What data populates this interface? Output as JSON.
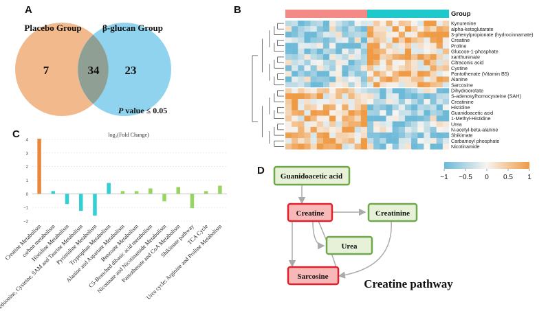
{
  "panels": {
    "a": "A",
    "b": "B",
    "c": "C",
    "d": "D"
  },
  "venn": {
    "left_label": "Placebo Group",
    "right_label": "β-glucan Group",
    "left_only": "7",
    "overlap": "34",
    "right_only": "23",
    "pvalue_p": "P",
    "pvalue_rest": " value ≤ 0.05",
    "colors": {
      "left": "#f2b98c",
      "right": "#8fd3ef",
      "overlap": "#8f9f93"
    }
  },
  "heatmap": {
    "group_label": "Group",
    "group_colors": [
      "#f48a86",
      "#1ec9cc"
    ],
    "metabolites": [
      "Kynurenine",
      "alpha-ketoglutarate",
      "3-phenylpropionate (hydrocinnamate)",
      "Creatine",
      "Proline",
      "Glucose-1-phosphate",
      "xanthurenate",
      "Citraconic acid",
      "Cystine",
      "Pantothenate (Vitamin B5)",
      "Alanine",
      "Sarcosine",
      "Dihydroorotate",
      "S-adenosylhomocysteine (SAH)",
      "Creatinine",
      "Histidine",
      "Guanidoacetic acid",
      "1-Methyl-Histidine",
      "Urea",
      "N-acetyl-beta-alanine",
      "Shikimate",
      "Carbamoyl phosphate",
      "Nicotinamide"
    ],
    "legend_ticks": [
      "−1",
      "−0.5",
      "0",
      "0.5",
      "1"
    ],
    "scale_colors": {
      "low": "#6db9d8",
      "mid": "#f7f4f0",
      "high": "#ef9a44"
    }
  },
  "chart_data": {
    "type": "bar",
    "title": "log₂(Fold Change)",
    "categories": [
      "Creatine Metabolism",
      "carbon metabolism",
      "Histidine Metabolism",
      "Methionine, Cysteine, SAM and Taurine Metabolism",
      "Pyrimidine Metabolism",
      "Tryptophan Metabolism",
      "Alanine and Aspartate Metabolism",
      "Benzoate Metabolism",
      "C5-Branched dibasic acid metabolism",
      "Nicotinate and Nicotinamide Metabolism",
      "Pantothenate and CoA Metabolism",
      "Shikimate pathway",
      "TCA Cycle",
      "Urea cycle; Arginine and Proline Metabolism"
    ],
    "values": [
      4.05,
      0.2,
      -0.75,
      -1.25,
      -1.6,
      0.8,
      0.2,
      0.2,
      0.4,
      -0.55,
      0.5,
      -1.05,
      0.2,
      0.6
    ],
    "bar_colors": [
      "#e8883f",
      "#32d0d2",
      "#32d0d2",
      "#32d0d2",
      "#32d0d2",
      "#32d0d2",
      "#98d461",
      "#98d461",
      "#98d461",
      "#98d461",
      "#98d461",
      "#98d461",
      "#98d461",
      "#98d461"
    ],
    "yticks": [
      "4",
      "3",
      "2",
      "1",
      "0",
      "−1",
      "−2"
    ],
    "ylim": [
      -2,
      4
    ],
    "grid": true
  },
  "pathway": {
    "title": "Creatine pathway",
    "nodes": {
      "guanidoacetic": "Guanidoacetic acid",
      "creatine": "Creatine",
      "creatinine": "Creatinine",
      "urea": "Urea",
      "sarcosine": "Sarcosine"
    },
    "colors": {
      "green_fill": "#e6f1d8",
      "green_border": "#6fa84a",
      "red_fill": "#f8b8b8",
      "red_border": "#e0202a",
      "arrow": "#aaaaaa"
    }
  }
}
